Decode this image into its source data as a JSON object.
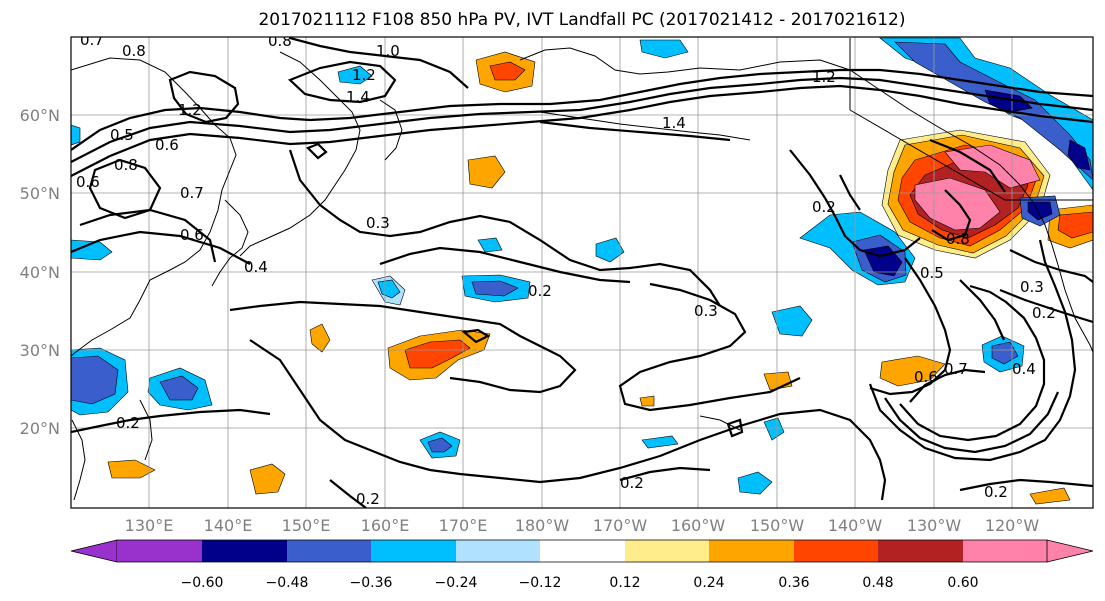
{
  "title": "2017021112 F108 850 hPa PV, IVT Landfall PC (2017021412 - 2017021612)",
  "map": {
    "lat_labels": [
      "60°N",
      "50°N",
      "40°N",
      "30°N",
      "20°N"
    ],
    "lon_labels": [
      "130°E",
      "140°E",
      "150°E",
      "160°E",
      "170°E",
      "180°W",
      "170°W",
      "160°W",
      "150°W",
      "140°W",
      "130°W",
      "120°W"
    ],
    "contour_labels": [
      "0.7",
      "0.8",
      "0.8",
      "1.0",
      "1.2",
      "1.2",
      "1.4",
      "0.5",
      "0.6",
      "0.8",
      "0.6",
      "0.7",
      "0.6",
      "0.4",
      "0.3",
      "0.2",
      "0.3",
      "1.4",
      "1.2",
      "0.2",
      "0.5",
      "0.8",
      "0.3",
      "0.2",
      "0.7",
      "0.6",
      "0.4",
      "0.2",
      "0.2",
      "0.2",
      "0.2"
    ]
  },
  "colorbar": {
    "ticks": [
      "−0.60",
      "−0.48",
      "−0.36",
      "−0.24",
      "−0.12",
      "0.12",
      "0.24",
      "0.36",
      "0.48",
      "0.60"
    ],
    "colors": [
      "#9932cc",
      "#00008b",
      "#3a5fcd",
      "#00bfff",
      "#b0e2ff",
      "#ffffff",
      "#ffec8b",
      "#ffa500",
      "#ff4500",
      "#b22222",
      "#ff82ab"
    ]
  }
}
